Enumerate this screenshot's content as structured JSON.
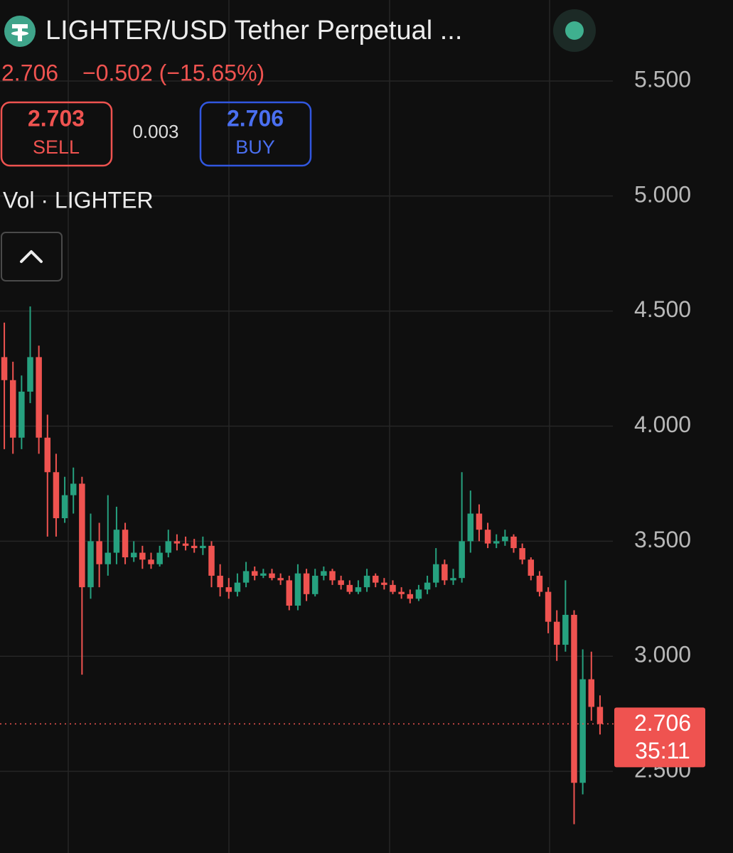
{
  "chart_data": {
    "type": "candlestick",
    "title": "LIGHTER/USD Tether Perpetual ...",
    "last_price": 2.706,
    "change": "−0.502 (−15.65%)",
    "sell": {
      "price": 2.703,
      "label": "SELL"
    },
    "spread": 0.003,
    "buy": {
      "price": 2.706,
      "label": "BUY"
    },
    "volume_label": "Vol · LIGHTER",
    "countdown": "35:11",
    "up_color": "#26a17f",
    "down_color": "#ef5350",
    "grid": true,
    "ylim": [
      2.145,
      5.852
    ],
    "yticks": [
      {
        "value": 2.5,
        "label": "2.500"
      },
      {
        "value": 3,
        "label": "3.000"
      },
      {
        "value": 3.5,
        "label": "3.500"
      },
      {
        "value": 4,
        "label": "4.000"
      },
      {
        "value": 4.5,
        "label": "4.500"
      },
      {
        "value": 5,
        "label": "5.000"
      },
      {
        "value": 5.5,
        "label": "5.500"
      }
    ],
    "open": [
      4.3,
      4.2,
      3.95,
      4.15,
      4.3,
      3.95,
      3.8,
      3.6,
      3.7,
      3.75,
      3.3,
      3.5,
      3.4,
      3.45,
      3.55,
      3.43,
      3.45,
      3.42,
      3.4,
      3.45,
      3.5,
      3.49,
      3.48,
      3.47,
      3.48,
      3.35,
      3.3,
      3.28,
      3.32,
      3.37,
      3.35,
      3.36,
      3.34,
      3.33,
      3.22,
      3.36,
      3.27,
      3.35,
      3.37,
      3.33,
      3.31,
      3.28,
      3.3,
      3.35,
      3.32,
      3.31,
      3.28,
      3.27,
      3.25,
      3.29,
      3.32,
      3.4,
      3.33,
      3.34,
      3.5,
      3.62,
      3.55,
      3.49,
      3.5,
      3.52,
      3.47,
      3.42,
      3.35,
      3.28,
      3.15,
      3.05,
      3.18,
      2.45,
      2.9,
      2.78
    ],
    "high": [
      4.45,
      4.28,
      4.22,
      4.52,
      4.35,
      4.05,
      3.88,
      3.78,
      3.82,
      3.78,
      3.62,
      3.58,
      3.7,
      3.65,
      3.58,
      3.5,
      3.48,
      3.45,
      3.48,
      3.55,
      3.53,
      3.52,
      3.51,
      3.52,
      3.5,
      3.4,
      3.34,
      3.36,
      3.41,
      3.39,
      3.38,
      3.38,
      3.36,
      3.35,
      3.4,
      3.38,
      3.38,
      3.39,
      3.38,
      3.35,
      3.33,
      3.33,
      3.38,
      3.36,
      3.34,
      3.33,
      3.3,
      3.29,
      3.31,
      3.35,
      3.47,
      3.42,
      3.38,
      3.8,
      3.72,
      3.66,
      3.58,
      3.53,
      3.55,
      3.53,
      3.49,
      3.43,
      3.37,
      3.3,
      3.2,
      3.33,
      3.2,
      3.03,
      3.02,
      2.83
    ],
    "low": [
      3.9,
      3.88,
      3.9,
      4.1,
      3.88,
      3.52,
      3.52,
      3.58,
      3.62,
      2.92,
      3.25,
      3.3,
      3.35,
      3.4,
      3.4,
      3.41,
      3.38,
      3.38,
      3.39,
      3.43,
      3.46,
      3.46,
      3.45,
      3.44,
      3.3,
      3.26,
      3.25,
      3.26,
      3.3,
      3.33,
      3.34,
      3.33,
      3.31,
      3.2,
      3.2,
      3.24,
      3.26,
      3.33,
      3.31,
      3.29,
      3.27,
      3.27,
      3.28,
      3.3,
      3.29,
      3.27,
      3.25,
      3.23,
      3.24,
      3.27,
      3.3,
      3.31,
      3.31,
      3.32,
      3.45,
      3.5,
      3.47,
      3.47,
      3.48,
      3.45,
      3.4,
      3.33,
      3.26,
      3.1,
      2.98,
      3.02,
      2.27,
      2.4,
      2.72,
      2.66
    ],
    "close": [
      4.2,
      3.95,
      4.15,
      4.3,
      3.95,
      3.8,
      3.6,
      3.7,
      3.75,
      3.3,
      3.5,
      3.4,
      3.45,
      3.55,
      3.43,
      3.45,
      3.42,
      3.4,
      3.45,
      3.5,
      3.49,
      3.48,
      3.47,
      3.48,
      3.35,
      3.3,
      3.28,
      3.32,
      3.37,
      3.35,
      3.36,
      3.34,
      3.33,
      3.22,
      3.36,
      3.27,
      3.35,
      3.37,
      3.33,
      3.31,
      3.28,
      3.3,
      3.35,
      3.32,
      3.31,
      3.28,
      3.27,
      3.25,
      3.29,
      3.32,
      3.4,
      3.33,
      3.34,
      3.5,
      3.62,
      3.55,
      3.49,
      3.5,
      3.52,
      3.47,
      3.42,
      3.35,
      3.28,
      3.15,
      3.05,
      3.18,
      2.45,
      2.9,
      2.78,
      2.706
    ]
  }
}
